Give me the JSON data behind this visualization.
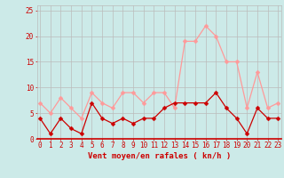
{
  "x": [
    0,
    1,
    2,
    3,
    4,
    5,
    6,
    7,
    8,
    9,
    10,
    11,
    12,
    13,
    14,
    15,
    16,
    17,
    18,
    19,
    20,
    21,
    22,
    23
  ],
  "wind_avg": [
    4,
    1,
    4,
    2,
    1,
    7,
    4,
    3,
    4,
    3,
    4,
    4,
    6,
    7,
    7,
    7,
    7,
    9,
    6,
    4,
    1,
    6,
    4,
    4
  ],
  "wind_gust": [
    7,
    5,
    8,
    6,
    4,
    9,
    7,
    6,
    9,
    9,
    7,
    9,
    9,
    6,
    19,
    19,
    22,
    20,
    15,
    15,
    6,
    13,
    6,
    7
  ],
  "avg_color": "#cc0000",
  "gust_color": "#ff9999",
  "bg_color": "#cceae8",
  "grid_color": "#bbbbbb",
  "xlabel": "Vent moyen/en rafales ( kn/h )",
  "xlabel_color": "#cc0000",
  "yticks": [
    0,
    5,
    10,
    15,
    20,
    25
  ],
  "ylim": [
    0,
    26
  ],
  "xlim": [
    -0.3,
    23.3
  ],
  "tick_fontsize": 5.5,
  "label_fontsize": 6.5,
  "markersize": 2.5
}
